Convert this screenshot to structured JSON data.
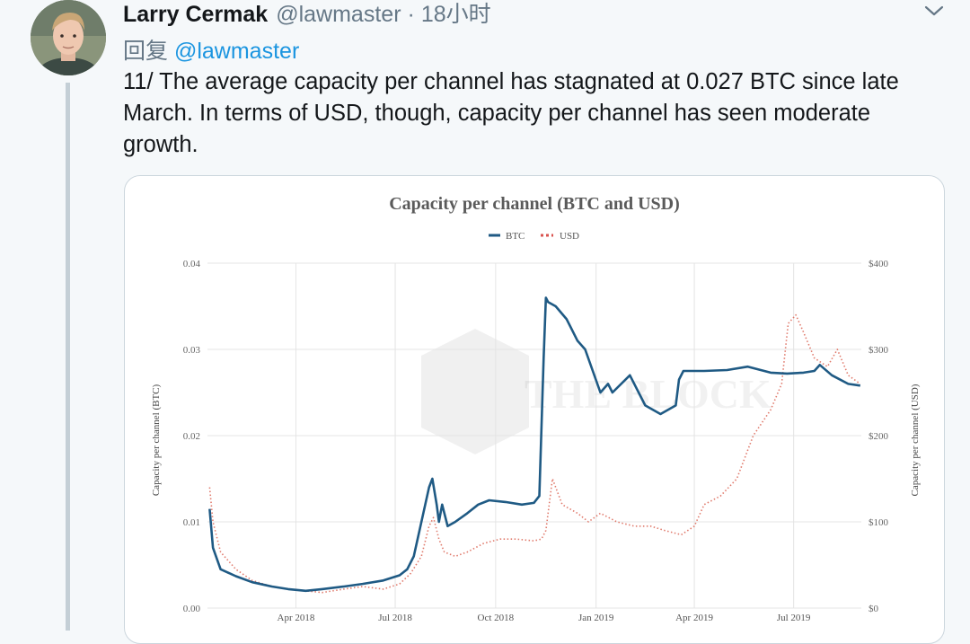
{
  "tweet": {
    "author_name": "Larry Cermak",
    "author_handle": "@lawmaster",
    "separator": "·",
    "time": "18小时",
    "reply_prefix": "回复",
    "reply_to": "@lawmaster",
    "text": "11/ The average capacity per channel has stagnated at 0.027 BTC since late March. In terms of USD, though, capacity per channel has seen moderate growth.",
    "menu_icon": "chevron-down-icon",
    "colors": {
      "name": "#14171a",
      "secondary": "#657786",
      "link": "#1b95e0",
      "background": "#f5f8fa",
      "thread_line": "#c4cfd6"
    }
  },
  "chart_data": {
    "type": "line",
    "title": "Capacity per channel (BTC and USD)",
    "legend": [
      "BTC",
      "USD"
    ],
    "legend_position": "top-center",
    "watermark": "THE BLOCK",
    "y_left_label": "Capacity per channel (BTC)",
    "y_right_label": "Capacity per channel (USD)",
    "y_left_ticks": [
      "0.00",
      "0.01",
      "0.02",
      "0.03",
      "0.04"
    ],
    "y_right_ticks": [
      "$0",
      "$100",
      "$200",
      "$300",
      "$400"
    ],
    "ylim_left": [
      0,
      0.04
    ],
    "ylim_right": [
      0,
      400
    ],
    "x_ticks": [
      "Apr 2018",
      "Jul 2018",
      "Oct 2018",
      "Jan 2019",
      "Apr 2019",
      "Jul 2019"
    ],
    "xlim": [
      "2018-01-10",
      "2019-09-01"
    ],
    "grid": true,
    "series": [
      {
        "name": "BTC",
        "axis": "left",
        "color": "#1f5a84",
        "style": "solid",
        "x": [
          "2018-01-12",
          "2018-01-15",
          "2018-01-22",
          "2018-02-05",
          "2018-02-20",
          "2018-03-10",
          "2018-03-25",
          "2018-04-10",
          "2018-04-25",
          "2018-05-15",
          "2018-06-01",
          "2018-06-20",
          "2018-07-05",
          "2018-07-12",
          "2018-07-18",
          "2018-07-25",
          "2018-08-01",
          "2018-08-04",
          "2018-08-08",
          "2018-08-10",
          "2018-08-13",
          "2018-08-18",
          "2018-08-25",
          "2018-09-05",
          "2018-09-15",
          "2018-09-25",
          "2018-10-10",
          "2018-10-25",
          "2018-11-05",
          "2018-11-10",
          "2018-11-14",
          "2018-11-16",
          "2018-11-18",
          "2018-11-25",
          "2018-12-05",
          "2018-12-15",
          "2018-12-22",
          "2019-01-05",
          "2019-01-12",
          "2019-01-16",
          "2019-02-01",
          "2019-02-15",
          "2019-03-01",
          "2019-03-15",
          "2019-03-18",
          "2019-03-22",
          "2019-04-10",
          "2019-05-01",
          "2019-05-20",
          "2019-06-10",
          "2019-06-25",
          "2019-07-10",
          "2019-07-20",
          "2019-07-25",
          "2019-08-05",
          "2019-08-20",
          "2019-08-31"
        ],
        "y": [
          0.0115,
          0.007,
          0.0045,
          0.0037,
          0.003,
          0.0025,
          0.0022,
          0.002,
          0.0022,
          0.0025,
          0.0028,
          0.0032,
          0.0038,
          0.0045,
          0.006,
          0.01,
          0.014,
          0.015,
          0.012,
          0.01,
          0.012,
          0.0095,
          0.01,
          0.011,
          0.012,
          0.0125,
          0.0123,
          0.012,
          0.0122,
          0.013,
          0.029,
          0.036,
          0.0355,
          0.035,
          0.0335,
          0.031,
          0.03,
          0.025,
          0.026,
          0.025,
          0.027,
          0.0235,
          0.0225,
          0.0235,
          0.0265,
          0.0275,
          0.0275,
          0.0276,
          0.028,
          0.0273,
          0.0272,
          0.0273,
          0.0275,
          0.0282,
          0.027,
          0.026,
          0.0258
        ]
      },
      {
        "name": "USD",
        "axis": "right",
        "color": "#e07a6c",
        "style": "dotted",
        "x": [
          "2018-01-12",
          "2018-01-15",
          "2018-01-22",
          "2018-02-05",
          "2018-02-20",
          "2018-03-10",
          "2018-03-25",
          "2018-04-10",
          "2018-04-25",
          "2018-05-15",
          "2018-06-01",
          "2018-06-20",
          "2018-07-05",
          "2018-07-15",
          "2018-07-25",
          "2018-08-01",
          "2018-08-05",
          "2018-08-10",
          "2018-08-15",
          "2018-08-25",
          "2018-09-05",
          "2018-09-20",
          "2018-10-05",
          "2018-10-20",
          "2018-11-05",
          "2018-11-12",
          "2018-11-16",
          "2018-11-22",
          "2018-12-01",
          "2018-12-15",
          "2018-12-25",
          "2019-01-05",
          "2019-01-20",
          "2019-02-05",
          "2019-02-20",
          "2019-03-05",
          "2019-03-20",
          "2019-04-01",
          "2019-04-10",
          "2019-04-25",
          "2019-05-10",
          "2019-05-25",
          "2019-06-10",
          "2019-06-20",
          "2019-06-26",
          "2019-07-03",
          "2019-07-10",
          "2019-07-20",
          "2019-08-01",
          "2019-08-10",
          "2019-08-20",
          "2019-08-31"
        ],
        "y": [
          140,
          100,
          65,
          45,
          32,
          25,
          22,
          20,
          18,
          22,
          25,
          22,
          28,
          40,
          60,
          95,
          105,
          80,
          65,
          60,
          65,
          75,
          80,
          80,
          78,
          80,
          90,
          150,
          120,
          110,
          100,
          110,
          100,
          95,
          95,
          90,
          85,
          95,
          120,
          130,
          150,
          200,
          230,
          260,
          330,
          340,
          320,
          290,
          280,
          300,
          270,
          260
        ]
      }
    ]
  }
}
